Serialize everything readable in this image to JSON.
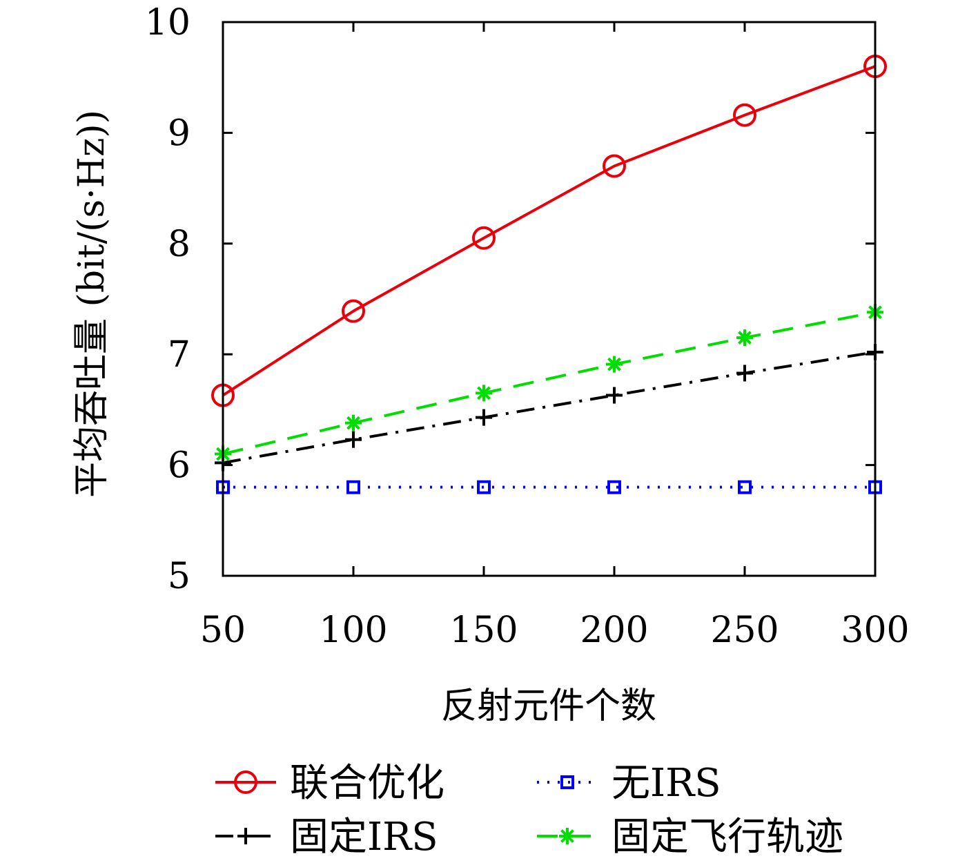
{
  "chart_data": {
    "type": "line",
    "xlabel": "反射元件个数",
    "ylabel": "平均吞吐量 (bit/(s·Hz))",
    "xlim": [
      50,
      300
    ],
    "ylim": [
      5,
      10
    ],
    "x_ticks": [
      "50",
      "100",
      "150",
      "200",
      "250",
      "300"
    ],
    "y_ticks": [
      "5",
      "6",
      "7",
      "8",
      "9",
      "10"
    ],
    "x": [
      50,
      100,
      150,
      200,
      250,
      300
    ],
    "grid": false,
    "legend_position": "bottom",
    "series": [
      {
        "name": "联合优化",
        "values": [
          6.63,
          7.39,
          8.05,
          8.7,
          9.16,
          9.6
        ],
        "color": "#e8000b",
        "line_style": "solid",
        "marker": "circle"
      },
      {
        "name": "无IRS",
        "values": [
          5.8,
          5.8,
          5.8,
          5.8,
          5.8,
          5.8
        ],
        "color": "#0000ff",
        "line_style": "dotted",
        "marker": "square"
      },
      {
        "name": "固定IRS",
        "values": [
          6.02,
          6.23,
          6.43,
          6.63,
          6.83,
          7.02
        ],
        "color": "#000000",
        "line_style": "dashdot",
        "marker": "plus"
      },
      {
        "name": "固定飞行轨迹",
        "values": [
          6.1,
          6.38,
          6.65,
          6.91,
          7.15,
          7.38
        ],
        "color": "#00dd00",
        "line_style": "dashed",
        "marker": "star"
      }
    ]
  }
}
